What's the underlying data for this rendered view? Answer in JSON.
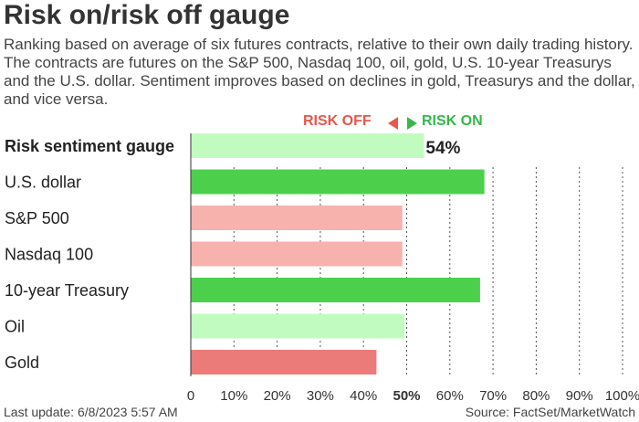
{
  "title": "Risk on/risk off gauge",
  "subtitle": "Ranking based on average of six futures contracts, relative to their own daily trading history. The contracts are futures on the S&P 500, Nasdaq 100, oil, gold, U.S. 10-year Treasurys and the U.S. dollar. Sentiment improves based on declines in gold, Treasurys and the dollar, and vice versa.",
  "legend": {
    "risk_off": "RISK OFF",
    "risk_on": "RISK ON"
  },
  "colors": {
    "strong_on": "#4cd04c",
    "weak_on": "#c2fbbf",
    "weak_off": "#f7b2ad",
    "strong_off": "#eb7b79",
    "risk_off_text": "#e8574b",
    "risk_on_text": "#35b84a"
  },
  "chart_data": {
    "type": "bar",
    "orientation": "horizontal",
    "categories": [
      "Risk sentiment gauge",
      "U.S. dollar",
      "S&P 500",
      "Nasdaq 100",
      "10-year Treasury",
      "Oil",
      "Gold"
    ],
    "values": [
      54,
      68,
      49,
      49,
      67,
      49.5,
      43
    ],
    "bar_colors": [
      "#c2fbbf",
      "#4cd04c",
      "#f7b2ad",
      "#f7b2ad",
      "#4cd04c",
      "#c2fbbf",
      "#eb7b79"
    ],
    "data_labels": [
      "54%",
      "",
      "",
      "",
      "",
      "",
      ""
    ],
    "xlim": [
      0,
      100
    ],
    "x_ticks": [
      "0",
      "10%",
      "20%",
      "30%",
      "40%",
      "50%",
      "60%",
      "70%",
      "80%",
      "90%",
      "100%"
    ],
    "x_tick_values": [
      0,
      10,
      20,
      30,
      40,
      50,
      60,
      70,
      80,
      90,
      100
    ],
    "highlight_tick": "50%",
    "grid": "vertical dotted"
  },
  "footer": {
    "last_update": "Last update: 6/8/2023 5:57 AM",
    "source": "Source: FactSet/MarketWatch"
  }
}
